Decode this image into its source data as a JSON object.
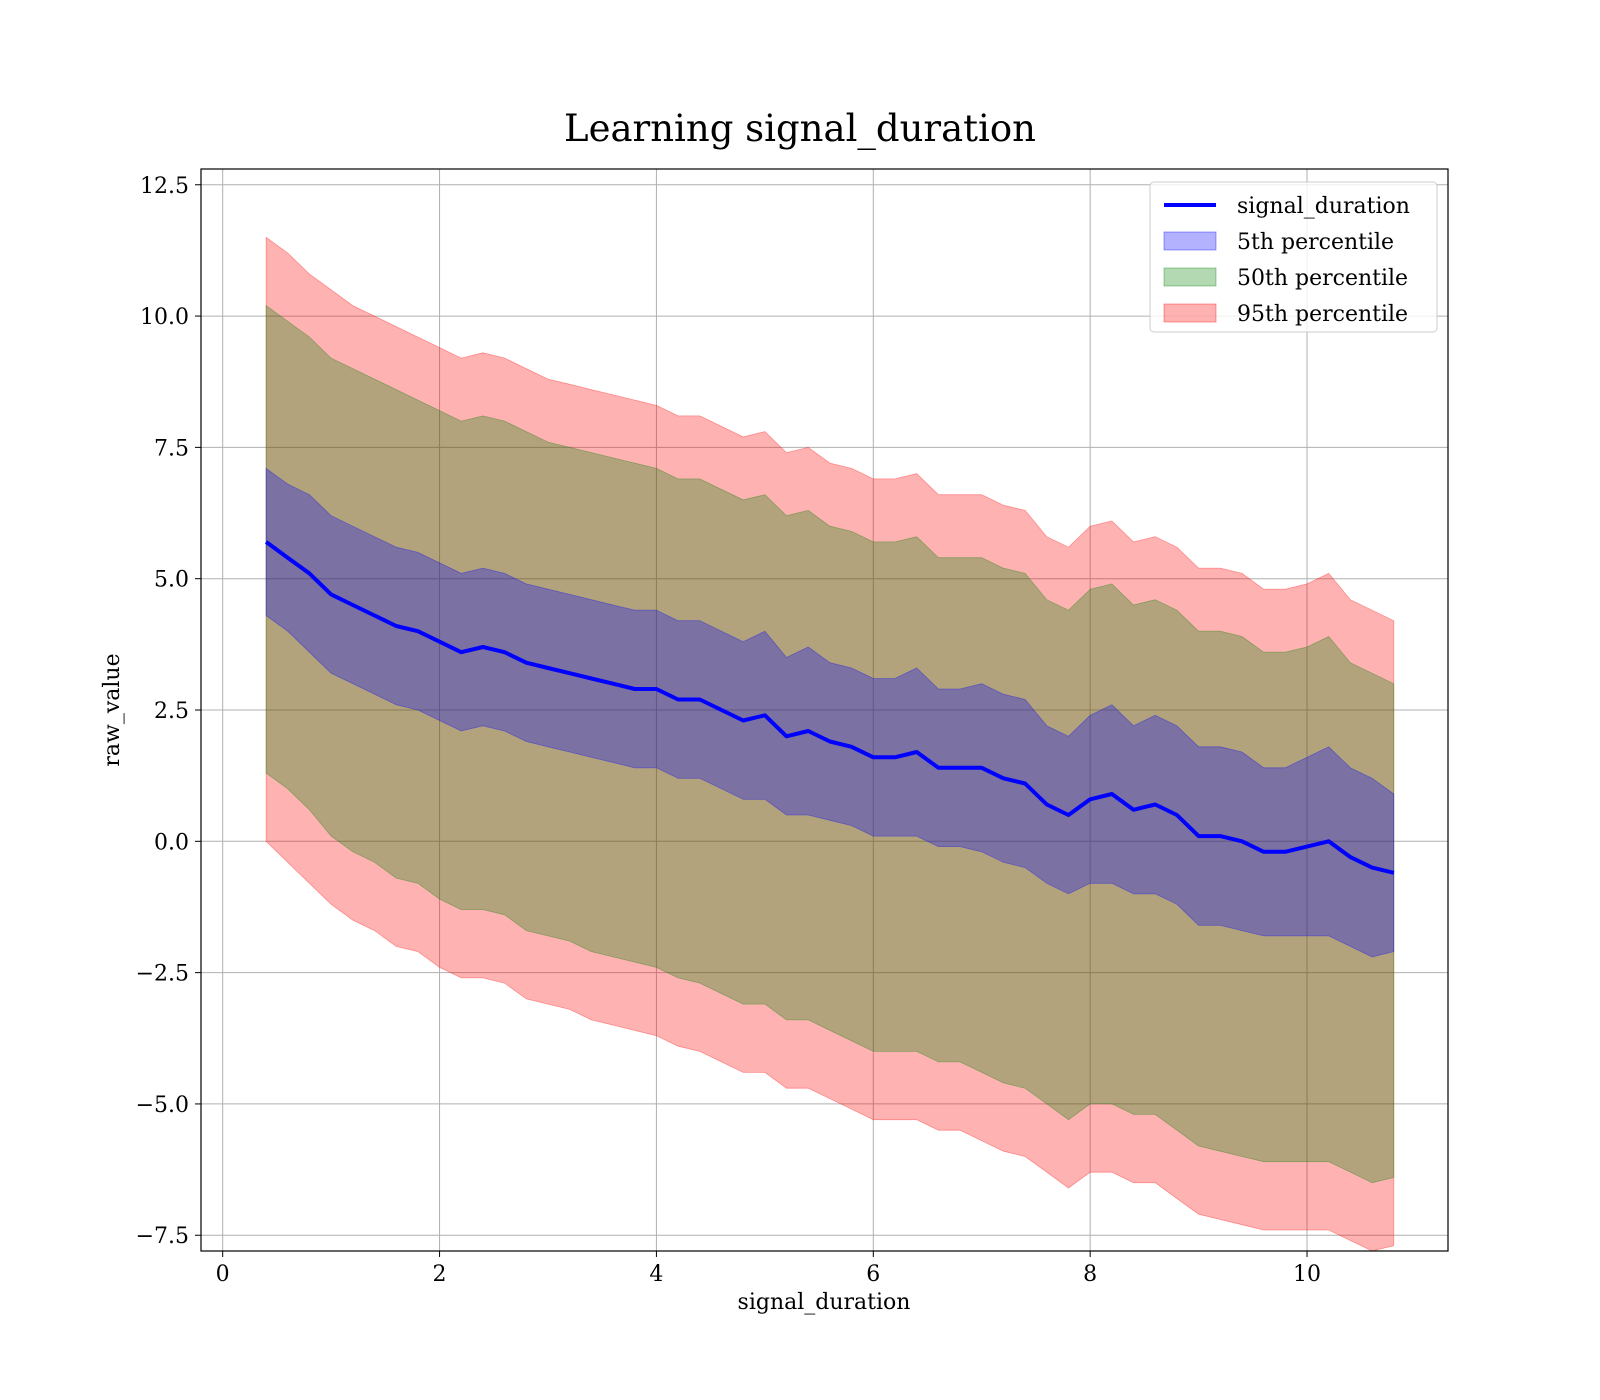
{
  "chart_data": {
    "type": "area",
    "title": "Learning signal_duration",
    "xlabel": "signal_duration",
    "ylabel": "raw_value",
    "xlim": [
      -0.2,
      11.3
    ],
    "ylim": [
      -7.8,
      12.8
    ],
    "xticks": [
      0,
      2,
      4,
      6,
      8,
      10
    ],
    "xtick_labels": [
      "0",
      "2",
      "4",
      "6",
      "8",
      "10"
    ],
    "yticks": [
      -7.5,
      -5.0,
      -2.5,
      0.0,
      2.5,
      5.0,
      7.5,
      10.0,
      12.5
    ],
    "ytick_labels": [
      "−7.5",
      "−5.0",
      "−2.5",
      "0.0",
      "2.5",
      "5.0",
      "7.5",
      "10.0",
      "12.5"
    ],
    "grid": true,
    "legend_position": "top-right",
    "x": [
      0.4,
      0.6,
      0.8,
      1.0,
      1.2,
      1.4,
      1.6,
      1.8,
      2.0,
      2.2,
      2.4,
      2.6,
      2.8,
      3.0,
      3.2,
      3.4,
      3.6,
      3.8,
      4.0,
      4.2,
      4.4,
      4.6,
      4.8,
      5.0,
      5.2,
      5.4,
      5.6,
      5.8,
      6.0,
      6.2,
      6.4,
      6.6,
      6.8,
      7.0,
      7.2,
      7.4,
      7.6,
      7.8,
      8.0,
      8.2,
      8.4,
      8.6,
      8.8,
      9.0,
      9.2,
      9.4,
      9.6,
      9.8,
      10.0,
      10.2,
      10.4,
      10.6,
      10.8
    ],
    "series": [
      {
        "name": "signal_duration",
        "style": "line",
        "color": "#0000ff",
        "values": [
          5.7,
          5.4,
          5.1,
          4.7,
          4.5,
          4.3,
          4.1,
          4.0,
          3.8,
          3.6,
          3.7,
          3.6,
          3.4,
          3.3,
          3.2,
          3.1,
          3.0,
          2.9,
          2.9,
          2.7,
          2.7,
          2.5,
          2.3,
          2.4,
          2.0,
          2.1,
          1.9,
          1.8,
          1.6,
          1.6,
          1.7,
          1.4,
          1.4,
          1.4,
          1.2,
          1.1,
          0.7,
          0.5,
          0.8,
          0.9,
          0.6,
          0.7,
          0.5,
          0.1,
          0.1,
          0.0,
          -0.2,
          -0.2,
          -0.1,
          0.0,
          -0.3,
          -0.5,
          -0.6
        ]
      },
      {
        "name": "5th percentile",
        "style": "band",
        "color": "#0000ff",
        "lower": [
          4.3,
          4.0,
          3.6,
          3.2,
          3.0,
          2.8,
          2.6,
          2.5,
          2.3,
          2.1,
          2.2,
          2.1,
          1.9,
          1.8,
          1.7,
          1.6,
          1.5,
          1.4,
          1.4,
          1.2,
          1.2,
          1.0,
          0.8,
          0.8,
          0.5,
          0.5,
          0.4,
          0.3,
          0.1,
          0.1,
          0.1,
          -0.1,
          -0.1,
          -0.2,
          -0.4,
          -0.5,
          -0.8,
          -1.0,
          -0.8,
          -0.8,
          -1.0,
          -1.0,
          -1.2,
          -1.6,
          -1.6,
          -1.7,
          -1.8,
          -1.8,
          -1.8,
          -1.8,
          -2.0,
          -2.2,
          -2.1
        ],
        "upper": [
          7.1,
          6.8,
          6.6,
          6.2,
          6.0,
          5.8,
          5.6,
          5.5,
          5.3,
          5.1,
          5.2,
          5.1,
          4.9,
          4.8,
          4.7,
          4.6,
          4.5,
          4.4,
          4.4,
          4.2,
          4.2,
          4.0,
          3.8,
          4.0,
          3.5,
          3.7,
          3.4,
          3.3,
          3.1,
          3.1,
          3.3,
          2.9,
          2.9,
          3.0,
          2.8,
          2.7,
          2.2,
          2.0,
          2.4,
          2.6,
          2.2,
          2.4,
          2.2,
          1.8,
          1.8,
          1.7,
          1.4,
          1.4,
          1.6,
          1.8,
          1.4,
          1.2,
          0.9
        ]
      },
      {
        "name": "50th percentile",
        "style": "band",
        "color": "#008000",
        "lower": [
          1.3,
          1.0,
          0.6,
          0.1,
          -0.2,
          -0.4,
          -0.7,
          -0.8,
          -1.1,
          -1.3,
          -1.3,
          -1.4,
          -1.7,
          -1.8,
          -1.9,
          -2.1,
          -2.2,
          -2.3,
          -2.4,
          -2.6,
          -2.7,
          -2.9,
          -3.1,
          -3.1,
          -3.4,
          -3.4,
          -3.6,
          -3.8,
          -4.0,
          -4.0,
          -4.0,
          -4.2,
          -4.2,
          -4.4,
          -4.6,
          -4.7,
          -5.0,
          -5.3,
          -5.0,
          -5.0,
          -5.2,
          -5.2,
          -5.5,
          -5.8,
          -5.9,
          -6.0,
          -6.1,
          -6.1,
          -6.1,
          -6.1,
          -6.3,
          -6.5,
          -6.4
        ],
        "upper": [
          10.2,
          9.9,
          9.6,
          9.2,
          9.0,
          8.8,
          8.6,
          8.4,
          8.2,
          8.0,
          8.1,
          8.0,
          7.8,
          7.6,
          7.5,
          7.4,
          7.3,
          7.2,
          7.1,
          6.9,
          6.9,
          6.7,
          6.5,
          6.6,
          6.2,
          6.3,
          6.0,
          5.9,
          5.7,
          5.7,
          5.8,
          5.4,
          5.4,
          5.4,
          5.2,
          5.1,
          4.6,
          4.4,
          4.8,
          4.9,
          4.5,
          4.6,
          4.4,
          4.0,
          4.0,
          3.9,
          3.6,
          3.6,
          3.7,
          3.9,
          3.4,
          3.2,
          3.0
        ]
      },
      {
        "name": "95th percentile",
        "style": "band",
        "color": "#ff0000",
        "lower": [
          0.0,
          -0.4,
          -0.8,
          -1.2,
          -1.5,
          -1.7,
          -2.0,
          -2.1,
          -2.4,
          -2.6,
          -2.6,
          -2.7,
          -3.0,
          -3.1,
          -3.2,
          -3.4,
          -3.5,
          -3.6,
          -3.7,
          -3.9,
          -4.0,
          -4.2,
          -4.4,
          -4.4,
          -4.7,
          -4.7,
          -4.9,
          -5.1,
          -5.3,
          -5.3,
          -5.3,
          -5.5,
          -5.5,
          -5.7,
          -5.9,
          -6.0,
          -6.3,
          -6.6,
          -6.3,
          -6.3,
          -6.5,
          -6.5,
          -6.8,
          -7.1,
          -7.2,
          -7.3,
          -7.4,
          -7.4,
          -7.4,
          -7.4,
          -7.6,
          -7.8,
          -7.7
        ],
        "upper": [
          11.5,
          11.2,
          10.8,
          10.5,
          10.2,
          10.0,
          9.8,
          9.6,
          9.4,
          9.2,
          9.3,
          9.2,
          9.0,
          8.8,
          8.7,
          8.6,
          8.5,
          8.4,
          8.3,
          8.1,
          8.1,
          7.9,
          7.7,
          7.8,
          7.4,
          7.5,
          7.2,
          7.1,
          6.9,
          6.9,
          7.0,
          6.6,
          6.6,
          6.6,
          6.4,
          6.3,
          5.8,
          5.6,
          6.0,
          6.1,
          5.7,
          5.8,
          5.6,
          5.2,
          5.2,
          5.1,
          4.8,
          4.8,
          4.9,
          5.1,
          4.6,
          4.4,
          4.2
        ]
      }
    ]
  }
}
